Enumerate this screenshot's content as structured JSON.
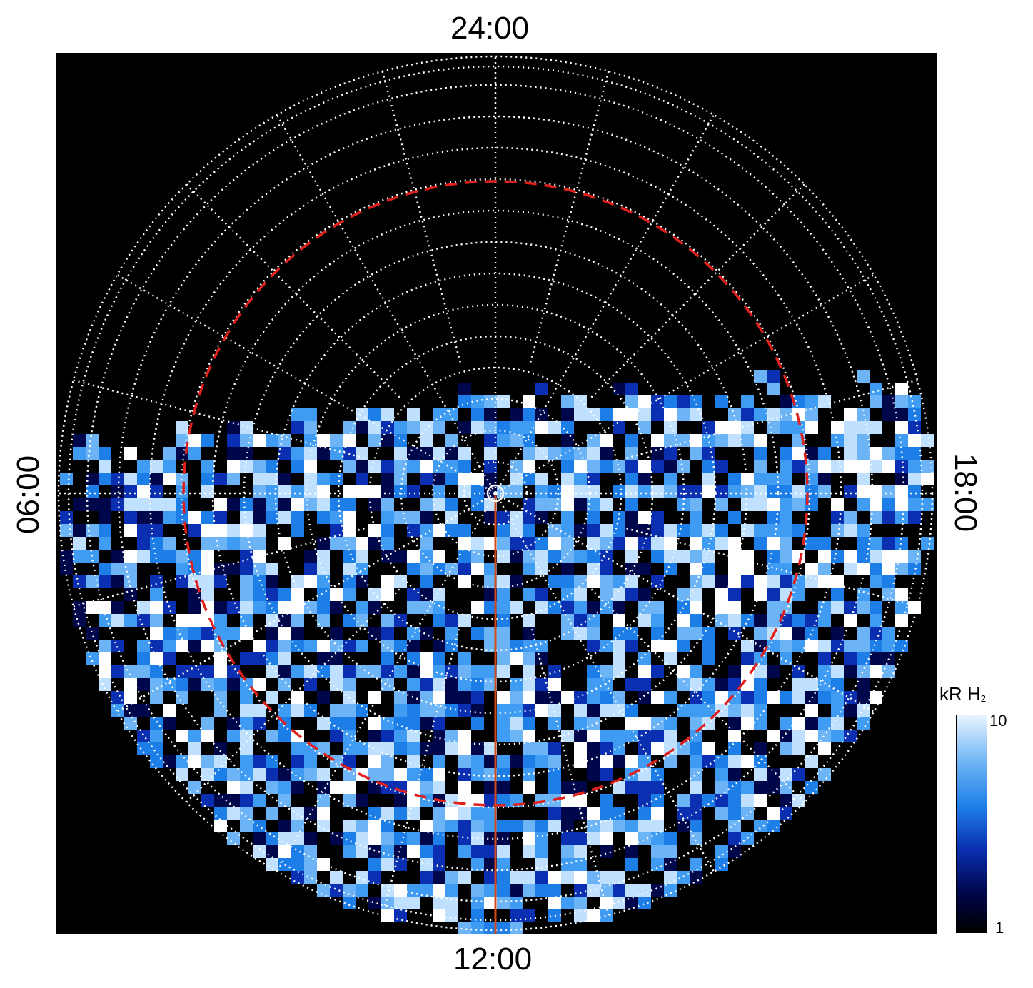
{
  "chart_data": {
    "type": "heatmap",
    "projection": "polar",
    "orientation": "local time around pole; 24:00 top, 12:00 bottom, 06:00 left, 18:00 right",
    "local_time_labels": {
      "top": "24:00",
      "bottom": "12:00",
      "left": "06:00",
      "right": "18:00"
    },
    "colorbar": {
      "title": "kR H",
      "title_subscript": "2",
      "min_label": "1",
      "max_label": "10",
      "scale": "log"
    },
    "colors": {
      "background": "#000000",
      "grid": "#ffffff",
      "reference_ring": "#e0201c",
      "meridian_line": "#d24a1c",
      "emission_low": "#00064a",
      "emission_mid": "#1e7ee8",
      "emission_high": "#ffffff"
    },
    "grid": true
  }
}
